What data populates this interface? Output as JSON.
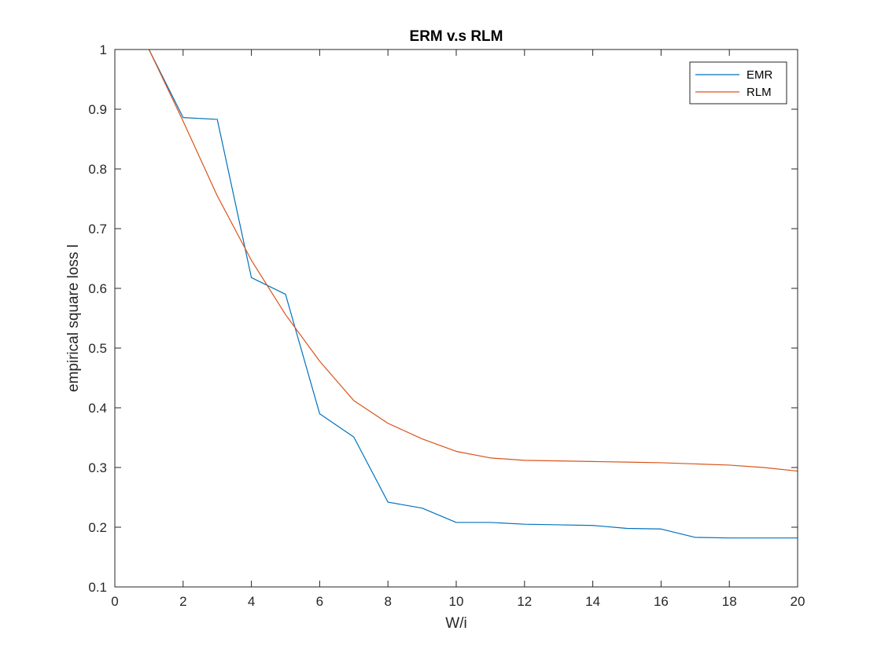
{
  "chart_data": {
    "type": "line",
    "title": "ERM v.s RLM",
    "xlabel": "W/i",
    "ylabel": "empirical square loss l",
    "xlim": [
      0,
      20
    ],
    "ylim": [
      0.1,
      1
    ],
    "xticks": [
      0,
      2,
      4,
      6,
      8,
      10,
      12,
      14,
      16,
      18,
      20
    ],
    "xtick_labels": [
      "0",
      "2",
      "4",
      "6",
      "8",
      "10",
      "12",
      "14",
      "16",
      "18",
      "20"
    ],
    "yticks": [
      0.1,
      0.2,
      0.3,
      0.4,
      0.5,
      0.6,
      0.7,
      0.8,
      0.9,
      1
    ],
    "ytick_labels": [
      "0.1",
      "0.2",
      "0.3",
      "0.4",
      "0.5",
      "0.6",
      "0.7",
      "0.8",
      "0.9",
      "1"
    ],
    "grid": false,
    "legend_position": "top-right",
    "x": [
      1,
      2,
      3,
      4,
      5,
      6,
      7,
      8,
      9,
      10,
      11,
      12,
      13,
      14,
      15,
      16,
      17,
      18,
      19,
      20
    ],
    "series": [
      {
        "name": "EMR",
        "color": "#0072BD",
        "values": [
          1.0,
          0.886,
          0.883,
          0.618,
          0.59,
          0.39,
          0.351,
          0.242,
          0.232,
          0.208,
          0.208,
          0.205,
          0.204,
          0.203,
          0.198,
          0.197,
          0.183,
          0.182,
          0.182,
          0.182
        ]
      },
      {
        "name": "RLM",
        "color": "#D95319",
        "values": [
          1.0,
          0.88,
          0.755,
          0.647,
          0.556,
          0.478,
          0.412,
          0.374,
          0.348,
          0.327,
          0.316,
          0.312,
          0.311,
          0.31,
          0.309,
          0.308,
          0.306,
          0.304,
          0.3,
          0.294
        ]
      }
    ]
  }
}
